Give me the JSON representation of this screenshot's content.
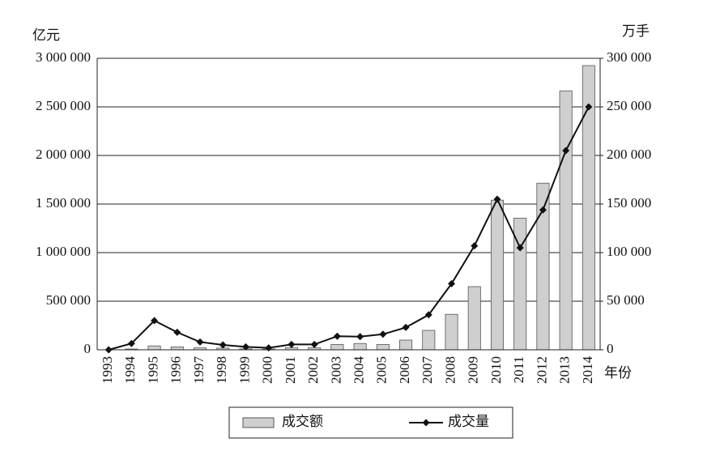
{
  "chart_data": {
    "type": "bar-line",
    "y_unit": "亿元",
    "y2_unit": "万手",
    "x_unit": "年份",
    "categories": [
      "1993",
      "1994",
      "1995",
      "1996",
      "1997",
      "1998",
      "1999",
      "2000",
      "2001",
      "2002",
      "2003",
      "2004",
      "2005",
      "2006",
      "2007",
      "2008",
      "2009",
      "2010",
      "2011",
      "2012",
      "2013",
      "2014"
    ],
    "series": [
      {
        "name": "成交额",
        "type": "bar",
        "color": "#cfcfcf",
        "axis": "y",
        "values": [
          0,
          8000,
          40000,
          30000,
          20000,
          18000,
          10000,
          8000,
          20000,
          20000,
          55000,
          65000,
          55000,
          100000,
          200000,
          365000,
          650000,
          1540000,
          1355000,
          1715000,
          2665000,
          2925000
        ]
      },
      {
        "name": "成交量",
        "type": "line",
        "color": "#111111",
        "axis": "y2",
        "values": [
          0,
          6500,
          30000,
          18000,
          8000,
          5000,
          3000,
          2000,
          5500,
          5500,
          14000,
          13500,
          16000,
          23000,
          36000,
          68000,
          107000,
          155000,
          105000,
          144000,
          205000,
          250000
        ]
      }
    ],
    "ylim": [
      0,
      3000000
    ],
    "yticks": [
      0,
      {
        "value": 500000,
        "label": "500 000"
      },
      {
        "value": 1000000,
        "label": "1 000 000"
      },
      {
        "value": 1500000,
        "label": "1 500 000"
      },
      {
        "value": 2000000,
        "label": "2 000 000"
      },
      {
        "value": 2500000,
        "label": "2 500 000"
      },
      {
        "value": 3000000,
        "label": "3 000 000"
      }
    ],
    "y2lim": [
      0,
      300000
    ],
    "y2ticks": [
      0,
      {
        "value": 50000,
        "label": "50 000"
      },
      {
        "value": 100000,
        "label": "100 000"
      },
      {
        "value": 150000,
        "label": "150 000"
      },
      {
        "value": 200000,
        "label": "200 000"
      },
      {
        "value": 250000,
        "label": "250 000"
      },
      {
        "value": 300000,
        "label": "300 000"
      }
    ],
    "grid": true
  }
}
